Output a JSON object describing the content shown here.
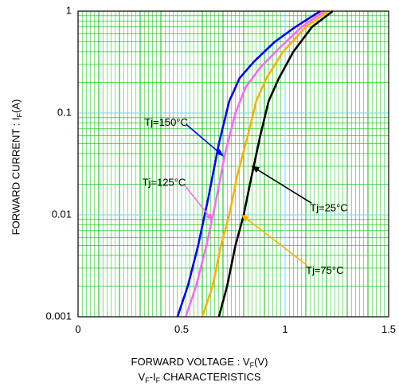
{
  "chart_data": {
    "type": "line",
    "xscale": "linear",
    "yscale": "log",
    "xlim": [
      0,
      1.5
    ],
    "ylim": [
      0.001,
      1
    ],
    "x_ticks": [
      "0",
      "0.5",
      "1",
      "1.5"
    ],
    "y_ticks": [
      "0.001",
      "0.01",
      "0.1",
      "1"
    ],
    "grid": true,
    "xlabel": {
      "main": "FORWARD VOLTAGE : V",
      "sub": "F",
      "unit": "(V)"
    },
    "ylabel": {
      "main": "FORWARD CURRENT : I",
      "sub": "F",
      "unit": "(A)"
    },
    "caption": {
      "a": "V",
      "a_sub": "F",
      "b": "-I",
      "b_sub": "F",
      "rest": " CHARACTERISTICS"
    },
    "series": [
      {
        "name": "Tj=150°C",
        "color": "#0000ff",
        "points": [
          [
            0.48,
            0.001
          ],
          [
            0.53,
            0.002
          ],
          [
            0.58,
            0.005
          ],
          [
            0.63,
            0.015
          ],
          [
            0.68,
            0.05
          ],
          [
            0.73,
            0.13
          ],
          [
            0.78,
            0.22
          ],
          [
            0.85,
            0.32
          ],
          [
            0.95,
            0.5
          ],
          [
            1.05,
            0.7
          ],
          [
            1.17,
            1.0
          ]
        ],
        "label_x": 0.32,
        "label_y": 0.08,
        "arrow_to": [
          0.7,
          0.038
        ]
      },
      {
        "name": "Tj=125°C",
        "color": "#ff66ff",
        "points": [
          [
            0.52,
            0.001
          ],
          [
            0.57,
            0.002
          ],
          [
            0.62,
            0.005
          ],
          [
            0.66,
            0.012
          ],
          [
            0.71,
            0.04
          ],
          [
            0.76,
            0.1
          ],
          [
            0.81,
            0.18
          ],
          [
            0.88,
            0.28
          ],
          [
            0.98,
            0.45
          ],
          [
            1.08,
            0.7
          ],
          [
            1.19,
            1.0
          ]
        ],
        "label_x": 0.31,
        "label_y": 0.0205,
        "arrow_to": [
          0.65,
          0.0088
        ]
      },
      {
        "name": "Tj=75°C",
        "color": "#ffb000",
        "points": [
          [
            0.6,
            0.001
          ],
          [
            0.65,
            0.002
          ],
          [
            0.69,
            0.005
          ],
          [
            0.73,
            0.01
          ],
          [
            0.77,
            0.025
          ],
          [
            0.82,
            0.06
          ],
          [
            0.86,
            0.13
          ],
          [
            0.91,
            0.22
          ],
          [
            0.99,
            0.4
          ],
          [
            1.1,
            0.7
          ],
          [
            1.21,
            1.0
          ]
        ],
        "label_x": 1.1,
        "label_y": 0.0028,
        "arrow_to": [
          0.79,
          0.01
        ]
      },
      {
        "name": "Tj=25°C",
        "color": "#000000",
        "points": [
          [
            0.68,
            0.001
          ],
          [
            0.72,
            0.002
          ],
          [
            0.76,
            0.005
          ],
          [
            0.8,
            0.01
          ],
          [
            0.84,
            0.025
          ],
          [
            0.88,
            0.06
          ],
          [
            0.92,
            0.13
          ],
          [
            0.97,
            0.22
          ],
          [
            1.04,
            0.4
          ],
          [
            1.13,
            0.7
          ],
          [
            1.23,
            1.0
          ]
        ],
        "label_x": 1.12,
        "label_y": 0.0115,
        "arrow_to": [
          0.84,
          0.03
        ]
      }
    ]
  }
}
